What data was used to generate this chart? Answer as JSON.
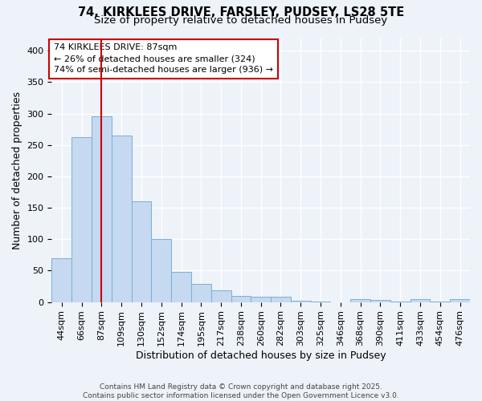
{
  "title1": "74, KIRKLEES DRIVE, FARSLEY, PUDSEY, LS28 5TE",
  "title2": "Size of property relative to detached houses in Pudsey",
  "xlabel": "Distribution of detached houses by size in Pudsey",
  "ylabel": "Number of detached properties",
  "categories": [
    "44sqm",
    "66sqm",
    "87sqm",
    "109sqm",
    "130sqm",
    "152sqm",
    "174sqm",
    "195sqm",
    "217sqm",
    "238sqm",
    "260sqm",
    "282sqm",
    "303sqm",
    "325sqm",
    "346sqm",
    "368sqm",
    "390sqm",
    "411sqm",
    "433sqm",
    "454sqm",
    "476sqm"
  ],
  "values": [
    70,
    263,
    295,
    265,
    160,
    100,
    48,
    29,
    18,
    10,
    8,
    9,
    2,
    1,
    0,
    5,
    3,
    1,
    4,
    1,
    4
  ],
  "bar_color": "#c5d9f0",
  "bar_edge_color": "#7bafd4",
  "highlight_index": 2,
  "vline_color": "#cc0000",
  "annotation_text": "74 KIRKLEES DRIVE: 87sqm\n← 26% of detached houses are smaller (324)\n74% of semi-detached houses are larger (936) →",
  "annotation_box_color": "#ffffff",
  "annotation_box_edge": "#cc0000",
  "footer_line1": "Contains HM Land Registry data © Crown copyright and database right 2025.",
  "footer_line2": "Contains public sector information licensed under the Open Government Licence v3.0.",
  "ylim": [
    0,
    420
  ],
  "yticks": [
    0,
    50,
    100,
    150,
    200,
    250,
    300,
    350,
    400
  ],
  "background_color": "#eef2f9",
  "grid_color": "#ffffff",
  "title1_fontsize": 10.5,
  "title2_fontsize": 9.5,
  "axis_label_fontsize": 9,
  "tick_fontsize": 8,
  "ann_fontsize": 8,
  "footer_fontsize": 6.5
}
